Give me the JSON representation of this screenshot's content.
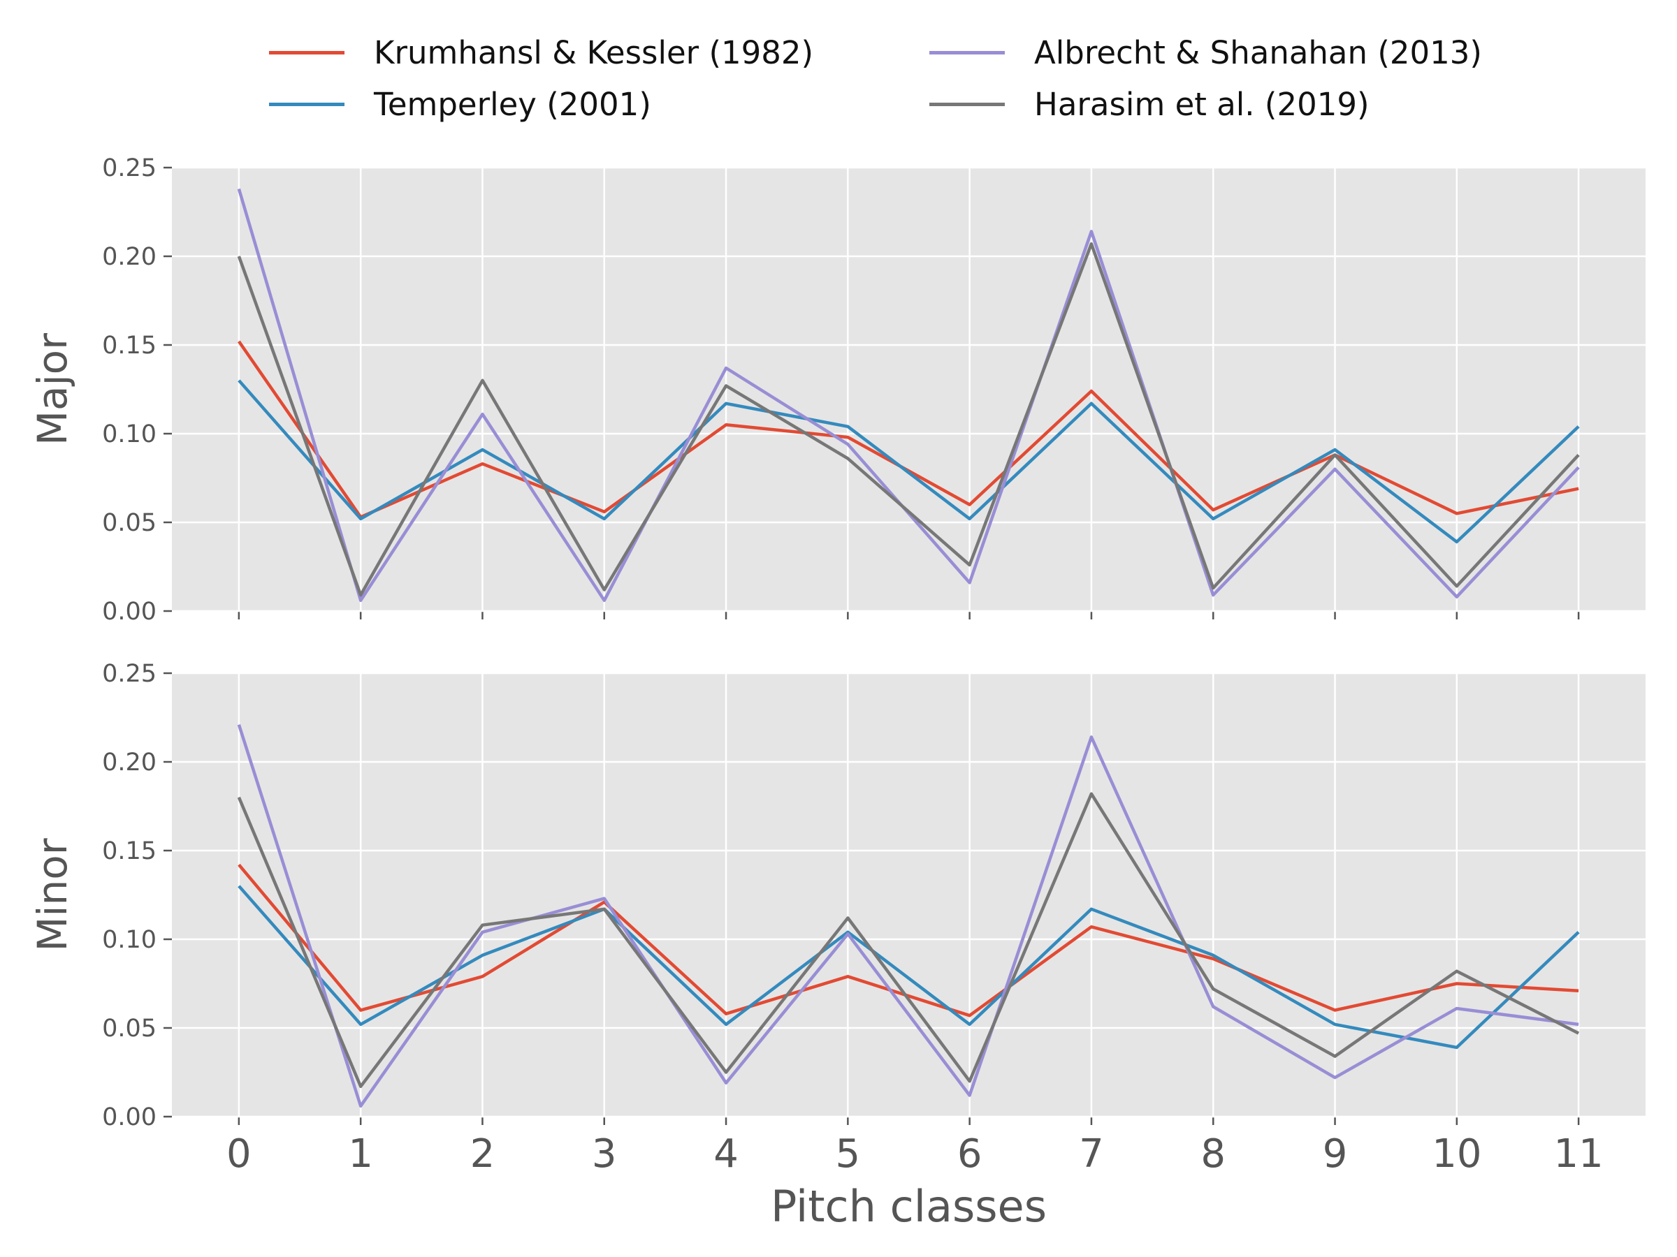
{
  "chart_data": [
    {
      "type": "line",
      "panel": "top",
      "ylabel": "Major",
      "xlabel": "",
      "ylim": [
        0,
        0.25
      ],
      "xlim": [
        -0.55,
        11.55
      ],
      "x": [
        0,
        1,
        2,
        3,
        4,
        5,
        6,
        7,
        8,
        9,
        10,
        11
      ],
      "yticks": [
        "0.00",
        "0.05",
        "0.10",
        "0.15",
        "0.20",
        "0.25"
      ],
      "xtick_labels_visible": false,
      "grid": true,
      "series": [
        {
          "name": "Krumhansl & Kessler (1982)",
          "color": "#e24a33",
          "values": [
            0.152,
            0.053,
            0.083,
            0.056,
            0.105,
            0.098,
            0.06,
            0.124,
            0.057,
            0.088,
            0.055,
            0.069
          ]
        },
        {
          "name": "Temperley (2001)",
          "color": "#348abd",
          "values": [
            0.13,
            0.052,
            0.091,
            0.052,
            0.117,
            0.104,
            0.052,
            0.117,
            0.052,
            0.091,
            0.039,
            0.104
          ]
        },
        {
          "name": "Albrecht & Shanahan (2013)",
          "color": "#988ed5",
          "values": [
            0.238,
            0.006,
            0.111,
            0.006,
            0.137,
            0.094,
            0.016,
            0.214,
            0.009,
            0.08,
            0.008,
            0.081
          ]
        },
        {
          "name": "Harasim et al. (2019)",
          "color": "#777777",
          "values": [
            0.2,
            0.009,
            0.13,
            0.012,
            0.127,
            0.086,
            0.026,
            0.207,
            0.013,
            0.088,
            0.014,
            0.088
          ]
        }
      ]
    },
    {
      "type": "line",
      "panel": "bottom",
      "ylabel": "Minor",
      "xlabel": "Pitch classes",
      "ylim": [
        0,
        0.25
      ],
      "xlim": [
        -0.55,
        11.55
      ],
      "x": [
        0,
        1,
        2,
        3,
        4,
        5,
        6,
        7,
        8,
        9,
        10,
        11
      ],
      "yticks": [
        "0.00",
        "0.05",
        "0.10",
        "0.15",
        "0.20",
        "0.25"
      ],
      "xticks": [
        "0",
        "1",
        "2",
        "3",
        "4",
        "5",
        "6",
        "7",
        "8",
        "9",
        "10",
        "11"
      ],
      "grid": true,
      "series": [
        {
          "name": "Krumhansl & Kessler (1982)",
          "color": "#e24a33",
          "values": [
            0.142,
            0.06,
            0.079,
            0.121,
            0.058,
            0.079,
            0.057,
            0.107,
            0.089,
            0.06,
            0.075,
            0.071
          ]
        },
        {
          "name": "Temperley (2001)",
          "color": "#348abd",
          "values": [
            0.13,
            0.052,
            0.091,
            0.117,
            0.052,
            0.104,
            0.052,
            0.117,
            0.091,
            0.052,
            0.039,
            0.104
          ]
        },
        {
          "name": "Albrecht & Shanahan (2013)",
          "color": "#988ed5",
          "values": [
            0.221,
            0.006,
            0.104,
            0.123,
            0.019,
            0.103,
            0.012,
            0.214,
            0.062,
            0.022,
            0.061,
            0.052
          ]
        },
        {
          "name": "Harasim et al. (2019)",
          "color": "#777777",
          "values": [
            0.18,
            0.017,
            0.108,
            0.117,
            0.025,
            0.112,
            0.02,
            0.182,
            0.072,
            0.034,
            0.082,
            0.047
          ]
        }
      ]
    }
  ],
  "legend": {
    "placement": "top, above plots, 2 columns",
    "entries": [
      {
        "label": "Krumhansl & Kessler (1982)",
        "color": "#e24a33"
      },
      {
        "label": "Temperley (2001)",
        "color": "#348abd"
      },
      {
        "label": "Albrecht & Shanahan (2013)",
        "color": "#988ed5"
      },
      {
        "label": "Harasim et al. (2019)",
        "color": "#777777"
      }
    ]
  },
  "style": {
    "plot_background": "#e5e5e5",
    "grid_color": "#ffffff",
    "tick_label_color": "#555555"
  }
}
